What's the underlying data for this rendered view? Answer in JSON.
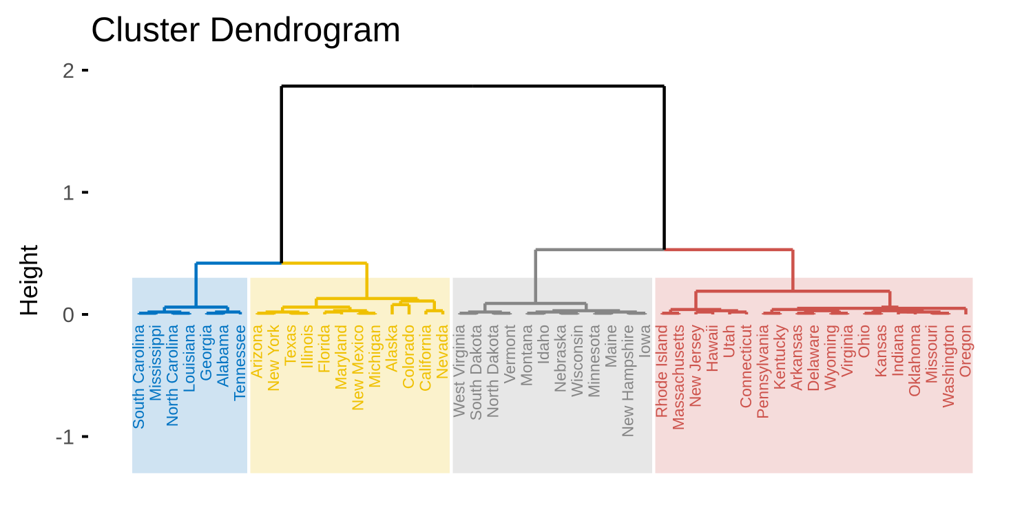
{
  "chart_data": {
    "type": "dendrogram",
    "title": "Cluster Dendrogram",
    "xlabel": "",
    "ylabel": "Height",
    "ylim": [
      -1.3,
      2.0
    ],
    "yticks": [
      2,
      1,
      0,
      -1
    ],
    "ytick_labels": [
      "2",
      "1",
      "0",
      "-1"
    ],
    "leaves": [
      "South Carolina",
      "Mississippi",
      "North Carolina",
      "Louisiana",
      "Georgia",
      "Alabama",
      "Tennessee",
      "Arizona",
      "New York",
      "Texas",
      "Illinois",
      "Florida",
      "Maryland",
      "New Mexico",
      "Michigan",
      "Alaska",
      "Colorado",
      "California",
      "Nevada",
      "West Virginia",
      "South Dakota",
      "North Dakota",
      "Vermont",
      "Montana",
      "Idaho",
      "Nebraska",
      "Wisconsin",
      "Minnesota",
      "Maine",
      "New Hampshire",
      "Iowa",
      "Rhode Island",
      "Massachusetts",
      "New Jersey",
      "Hawaii",
      "Utah",
      "Connecticut",
      "Pennsylvania",
      "Kentucky",
      "Arkansas",
      "Delaware",
      "Wyoming",
      "Virginia",
      "Ohio",
      "Kansas",
      "Indiana",
      "Oklahoma",
      "Missouri",
      "Washington",
      "Oregon"
    ],
    "clusters": [
      {
        "color": "#0073C2",
        "fill": "#CFE3F2",
        "first_leaf": 0,
        "last_leaf": 6
      },
      {
        "color": "#EFC000",
        "fill": "#FBF2CC",
        "first_leaf": 7,
        "last_leaf": 18
      },
      {
        "color": "#868686",
        "fill": "#E7E7E7",
        "first_leaf": 19,
        "last_leaf": 30
      },
      {
        "color": "#CD534C",
        "fill": "#F5DCDB",
        "first_leaf": 31,
        "last_leaf": 49
      }
    ],
    "root_color": "#000000",
    "merges": [
      [
        0,
        1,
        0.01
      ],
      [
        2,
        3,
        0.01
      ],
      [
        4,
        5,
        0.01
      ],
      [
        50,
        51,
        0.02
      ],
      [
        52,
        6,
        0.02
      ],
      [
        53,
        54,
        0.06
      ],
      [
        7,
        8,
        0.01
      ],
      [
        9,
        10,
        0.01
      ],
      [
        11,
        12,
        0.02
      ],
      [
        13,
        14,
        0.01
      ],
      [
        56,
        57,
        0.02
      ],
      [
        58,
        59,
        0.03
      ],
      [
        61,
        60,
        0.06
      ],
      [
        15,
        16,
        0.08
      ],
      [
        17,
        18,
        0.03
      ],
      [
        63,
        64,
        0.11
      ],
      [
        62,
        65,
        0.13
      ],
      [
        66,
        55,
        0.42
      ],
      [
        19,
        20,
        0.01
      ],
      [
        21,
        22,
        0.01
      ],
      [
        68,
        69,
        0.02
      ],
      [
        23,
        24,
        0.01
      ],
      [
        25,
        26,
        0.01
      ],
      [
        71,
        72,
        0.02
      ],
      [
        27,
        28,
        0.01
      ],
      [
        29,
        30,
        0.01
      ],
      [
        74,
        75,
        0.02
      ],
      [
        73,
        76,
        0.03
      ],
      [
        70,
        77,
        0.09
      ],
      [
        78,
        null,
        0.53
      ],
      [
        31,
        32,
        0.01
      ],
      [
        33,
        34,
        0.02
      ],
      [
        35,
        36,
        0.02
      ],
      [
        81,
        82,
        0.03
      ],
      [
        80,
        83,
        0.04
      ],
      [
        37,
        38,
        0.01
      ],
      [
        39,
        40,
        0.01
      ],
      [
        41,
        42,
        0.01
      ],
      [
        86,
        87,
        0.03
      ],
      [
        85,
        88,
        0.04
      ],
      [
        43,
        44,
        0.01
      ],
      [
        45,
        46,
        0.02
      ],
      [
        47,
        48,
        0.01
      ],
      [
        91,
        92,
        0.02
      ],
      [
        90,
        93,
        0.03
      ],
      [
        89,
        49,
        0.05
      ],
      [
        94,
        95,
        0.06
      ],
      [
        96,
        null,
        0.06
      ],
      [
        84,
        97,
        0.19
      ],
      [
        79,
        98,
        0.53
      ],
      [
        67,
        99,
        1.87
      ]
    ]
  }
}
